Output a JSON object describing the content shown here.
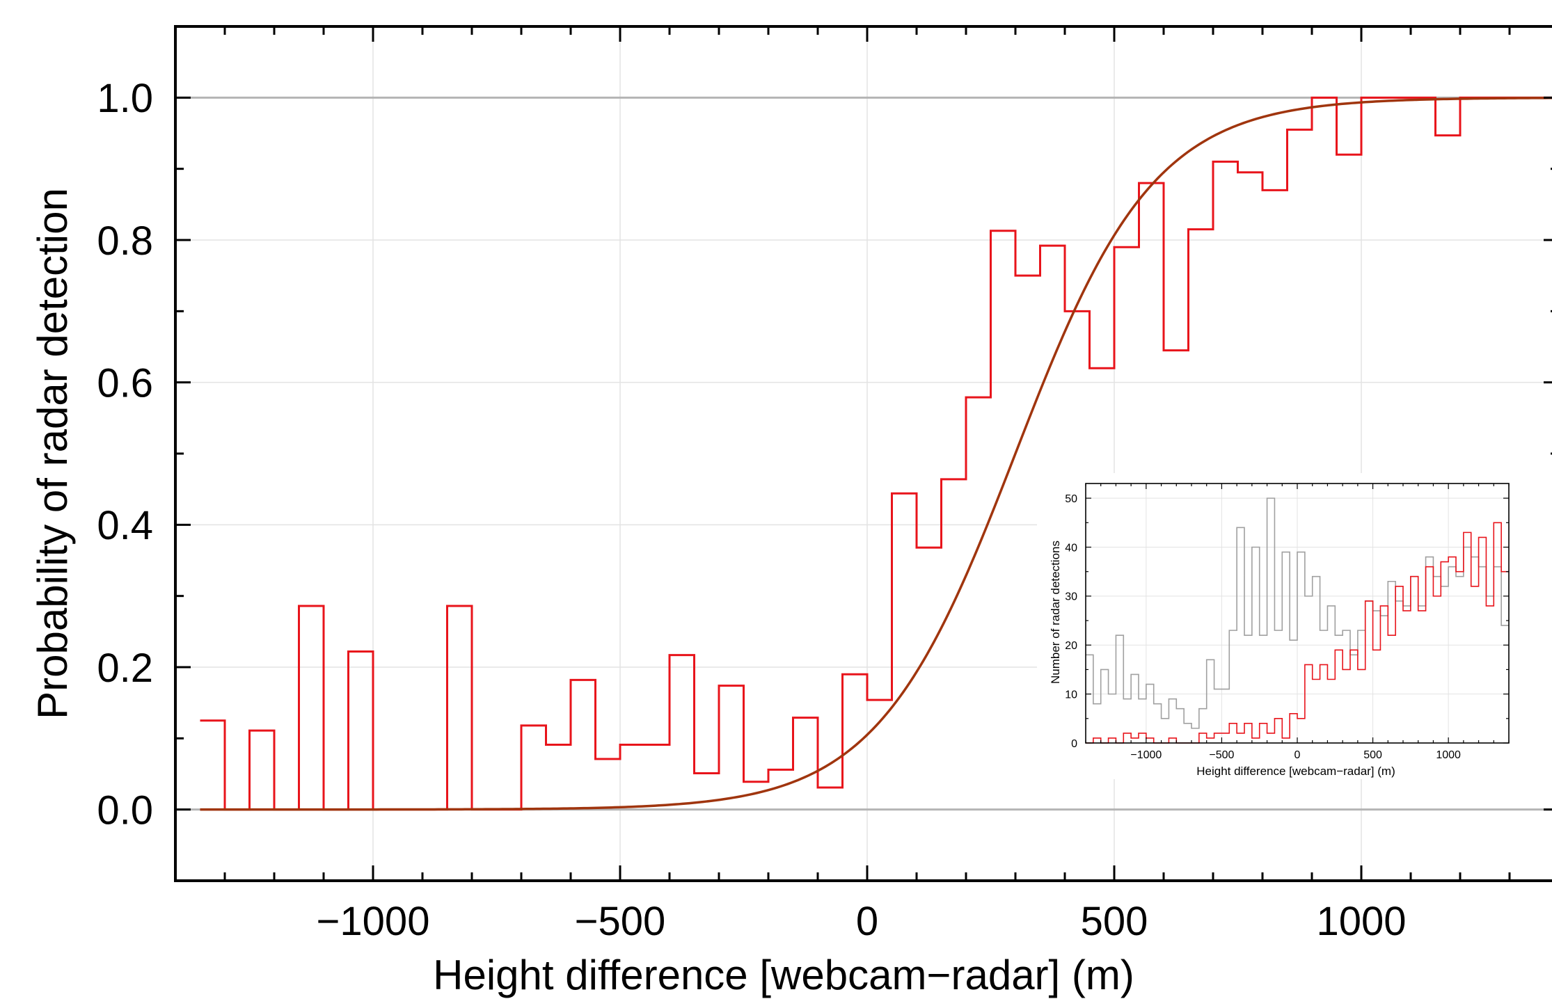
{
  "chart_data": [
    {
      "id": "main",
      "type": "line",
      "title": "",
      "xlabel": "Height difference [webcam−radar] (m)",
      "ylabel": "Probability of radar detection",
      "xlim": [
        -1400,
        1400
      ],
      "ylim": [
        -0.1,
        1.1
      ],
      "x_ticks": [
        -1000,
        -500,
        0,
        500,
        1000
      ],
      "x_tick_labels": [
        "−1000",
        "−500",
        "0",
        "500",
        "1000"
      ],
      "y_ticks": [
        0.0,
        0.2,
        0.4,
        0.6,
        0.8,
        1.0
      ],
      "y_tick_labels": [
        "0.0",
        "0.2",
        "0.4",
        "0.6",
        "0.8",
        "1.0"
      ],
      "grid": true,
      "bin_edges": [
        -1350,
        -1300,
        -1250,
        -1200,
        -1150,
        -1100,
        -1050,
        -1000,
        -950,
        -900,
        -850,
        -800,
        -750,
        -700,
        -650,
        -600,
        -550,
        -500,
        -450,
        -400,
        -350,
        -300,
        -250,
        -200,
        -150,
        -100,
        -50,
        0,
        50,
        100,
        150,
        200,
        250,
        300,
        350,
        400,
        450,
        500,
        550,
        600,
        650,
        700,
        750,
        800,
        850,
        900,
        950,
        1000,
        1050,
        1100,
        1150,
        1200,
        1250,
        1300,
        1350,
        1400
      ],
      "series": [
        {
          "kind": "step-histogram",
          "color": "#e8141b",
          "values": [
            0.125,
            0,
            0.111,
            0,
            0.286,
            0,
            0.222,
            0,
            0,
            0,
            0.286,
            0,
            0,
            0.118,
            0.091,
            0.182,
            0.071,
            0.091,
            0.091,
            0.217,
            0.051,
            0.174,
            0.039,
            0.056,
            0.129,
            0.031,
            0.19,
            0.154,
            0.444,
            0.368,
            0.464,
            0.579,
            0.813,
            0.75,
            0.792,
            0.7,
            0.62,
            0.79,
            0.88,
            0.645,
            0.815,
            0.91,
            0.895,
            0.87,
            0.955,
            1.0,
            0.92,
            1.0,
            1.0,
            1.0,
            0.947,
            1.0,
            1.0,
            1.0,
            1.0
          ]
        },
        {
          "kind": "fitted-curve",
          "color": "#a0350e",
          "function": "logistic",
          "midpoint": 300,
          "scale": 140
        }
      ]
    },
    {
      "id": "inset",
      "type": "line",
      "title": "",
      "xlabel": "Height difference [webcam−radar] (m)",
      "ylabel": "Number of radar detections",
      "xlim": [
        -1400,
        1400
      ],
      "ylim": [
        0,
        53
      ],
      "x_ticks": [
        -1000,
        -500,
        0,
        500,
        1000
      ],
      "x_tick_labels": [
        "−1000",
        "−500",
        "0",
        "500",
        "1000"
      ],
      "y_ticks": [
        0,
        10,
        20,
        30,
        40,
        50
      ],
      "y_tick_labels": [
        "0",
        "10",
        "20",
        "30",
        "40",
        "50"
      ],
      "grid": true,
      "bin_edges": [
        -1400,
        -1350,
        -1300,
        -1250,
        -1200,
        -1150,
        -1100,
        -1050,
        -1000,
        -950,
        -900,
        -850,
        -800,
        -750,
        -700,
        -650,
        -600,
        -550,
        -500,
        -450,
        -400,
        -350,
        -300,
        -250,
        -200,
        -150,
        -100,
        -50,
        0,
        50,
        100,
        150,
        200,
        250,
        300,
        350,
        400,
        450,
        500,
        550,
        600,
        650,
        700,
        750,
        800,
        850,
        900,
        950,
        1000,
        1050,
        1100,
        1150,
        1200,
        1250,
        1300,
        1350,
        1400
      ],
      "series": [
        {
          "kind": "step-histogram",
          "color": "#a0a0a0",
          "values": [
            18,
            8,
            15,
            10,
            22,
            9,
            14,
            9,
            12,
            8,
            5,
            9,
            7,
            4,
            3,
            7,
            17,
            11,
            11,
            23,
            44,
            22,
            40,
            22,
            50,
            23,
            39,
            21,
            39,
            30,
            34,
            23,
            28,
            22,
            23,
            18,
            23,
            29,
            27,
            26,
            33,
            29,
            28,
            34,
            28,
            38,
            34,
            32,
            36,
            34,
            40,
            38,
            36,
            30,
            36,
            24
          ]
        },
        {
          "kind": "step-histogram",
          "color": "#e8141b",
          "values": [
            0,
            1,
            0,
            1,
            0,
            2,
            1,
            2,
            1,
            0,
            0,
            1,
            0,
            0,
            0,
            2,
            1,
            2,
            2,
            4,
            2,
            4,
            1,
            4,
            2,
            5,
            1,
            6,
            5,
            16,
            13,
            16,
            13,
            19,
            15,
            19,
            15,
            29,
            19,
            28,
            22,
            32,
            27,
            34,
            27,
            36,
            30,
            37,
            38,
            35,
            43,
            32,
            42,
            28,
            45,
            35
          ]
        }
      ]
    }
  ]
}
